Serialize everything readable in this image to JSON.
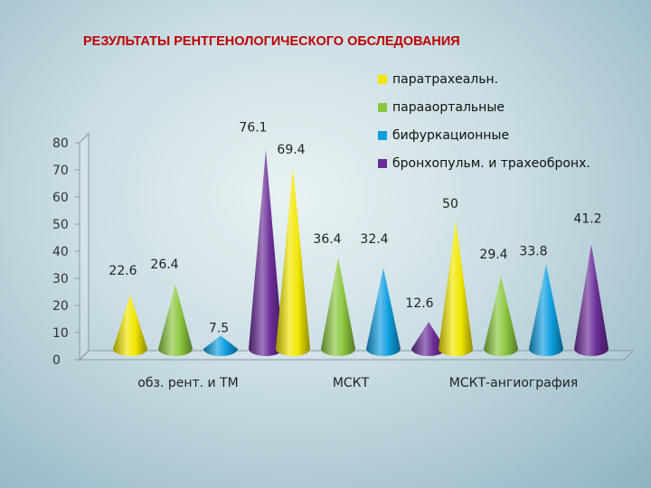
{
  "chart_data": {
    "type": "bar",
    "title": "РЕЗУЛЬТАТЫ РЕНТГЕНОЛОГИЧЕСКОГО ОБСЛЕДОВАНИЯ",
    "categories": [
      "обз. рент. и ТМ",
      "МСКТ",
      "МСКТ-ангиография"
    ],
    "series": [
      {
        "name": "паратрахеальн.",
        "color": "#f2e600",
        "values": [
          22.6,
          69.4,
          50
        ]
      },
      {
        "name": "парааортальные",
        "color": "#8cc63e",
        "values": [
          26.4,
          36.4,
          29.4
        ]
      },
      {
        "name": "бифуркационные",
        "color": "#0f9fe0",
        "values": [
          7.5,
          32.4,
          33.8
        ]
      },
      {
        "name": "бронхопульм. и трахеобронх.",
        "color": "#6a2c96",
        "values": [
          76.1,
          12.6,
          41.2
        ]
      }
    ],
    "data_labels": [
      [
        "22.6",
        "69.4",
        "50"
      ],
      [
        "26.4",
        "36.4",
        "29.4"
      ],
      [
        "7.5",
        "32.4",
        "33.8"
      ],
      [
        "76.1",
        "12.6",
        "41.2"
      ]
    ],
    "yticks": [
      "0",
      "10",
      "20",
      "30",
      "40",
      "50",
      "60",
      "70",
      "80"
    ],
    "ylim": [
      0,
      80
    ],
    "xlabel": "",
    "ylabel": "",
    "bar_shape": "cone",
    "legend_position": "top-right",
    "grid": false
  }
}
